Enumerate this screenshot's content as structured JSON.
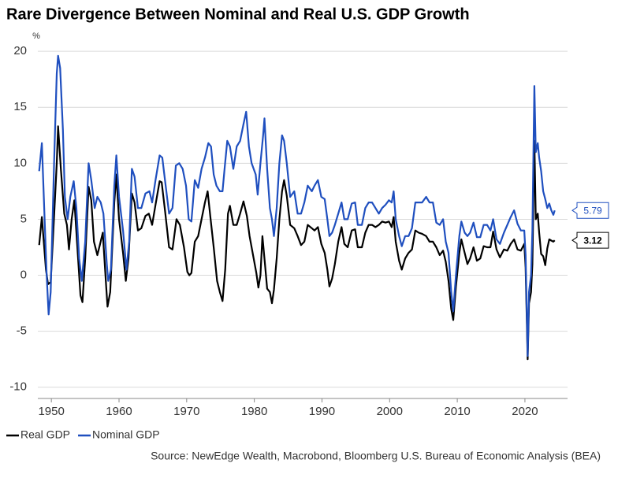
{
  "chart_data": {
    "type": "line",
    "title": "Rare Divergence Between Nominal and Real U.S. GDP Growth",
    "y_unit_label": "%",
    "source": "Source: NewEdge Wealth, Macrobond, Bloomberg U.S. Bureau of Economic Analysis (BEA)",
    "xlim": [
      1948,
      2026.3
    ],
    "xticks": [
      1950,
      1960,
      1970,
      1980,
      1990,
      2000,
      2010,
      2020
    ],
    "ylim": [
      -11,
      20.5
    ],
    "yticks": [
      -10,
      -5,
      0,
      5,
      10,
      15,
      20
    ],
    "grid": true,
    "series": [
      {
        "name": "Real GDP",
        "color": "#000000",
        "x": [
          1948.2,
          1948.6,
          1949.2,
          1949.5,
          1949.9,
          1950.3,
          1950.8,
          1951.0,
          1951.4,
          1951.9,
          1952.3,
          1952.6,
          1953.0,
          1953.4,
          1953.9,
          1954.3,
          1954.6,
          1955.0,
          1955.5,
          1955.9,
          1956.3,
          1956.8,
          1957.2,
          1957.6,
          1958.1,
          1958.3,
          1958.7,
          1959.3,
          1959.6,
          1960.0,
          1960.6,
          1961.0,
          1961.4,
          1961.9,
          1962.3,
          1962.8,
          1963.3,
          1963.9,
          1964.4,
          1964.9,
          1965.4,
          1966.0,
          1966.3,
          1966.8,
          1967.4,
          1967.9,
          1968.5,
          1969.0,
          1969.6,
          1970.1,
          1970.4,
          1970.7,
          1971.2,
          1971.7,
          1972.2,
          1972.7,
          1973.1,
          1973.5,
          1974.0,
          1974.5,
          1974.9,
          1975.3,
          1975.7,
          1976.1,
          1976.4,
          1976.9,
          1977.4,
          1977.9,
          1978.4,
          1978.9,
          1979.3,
          1979.9,
          1980.3,
          1980.6,
          1980.9,
          1981.2,
          1981.6,
          1981.9,
          1982.3,
          1982.6,
          1982.9,
          1983.3,
          1983.7,
          1984.1,
          1984.4,
          1984.8,
          1985.3,
          1985.9,
          1986.4,
          1986.9,
          1987.4,
          1987.9,
          1988.5,
          1988.9,
          1989.4,
          1989.9,
          1990.4,
          1990.8,
          1991.1,
          1991.5,
          1991.9,
          1992.4,
          1992.9,
          1993.3,
          1993.8,
          1994.4,
          1994.9,
          1995.3,
          1995.9,
          1996.4,
          1996.9,
          1997.4,
          1997.9,
          1998.4,
          1998.9,
          1999.4,
          1999.9,
          2000.3,
          2000.6,
          2000.9,
          2001.4,
          2001.8,
          2002.3,
          2002.8,
          2003.3,
          2003.8,
          2004.3,
          2004.8,
          2005.4,
          2005.9,
          2006.4,
          2006.9,
          2007.4,
          2007.9,
          2008.3,
          2008.7,
          2009.1,
          2009.4,
          2009.8,
          2010.3,
          2010.6,
          2011.1,
          2011.5,
          2011.9,
          2012.4,
          2012.9,
          2013.4,
          2013.9,
          2014.4,
          2014.9,
          2015.3,
          2015.8,
          2016.3,
          2016.9,
          2017.4,
          2017.9,
          2018.4,
          2018.9,
          2019.4,
          2019.9,
          2020.1,
          2020.4,
          2020.6,
          2020.9,
          2021.1,
          2021.4,
          2021.6,
          2021.9,
          2022.1,
          2022.4,
          2022.7,
          2023.0,
          2023.3,
          2023.6,
          2023.9,
          2024.2,
          2024.4
        ],
        "values": [
          2.7,
          5.2,
          0.5,
          -0.8,
          -0.6,
          4,
          10,
          13.3,
          9.5,
          5.5,
          4.5,
          2.3,
          5,
          6.7,
          2,
          -1.8,
          -2.4,
          1.5,
          7.9,
          6.7,
          3,
          1.8,
          2.8,
          3.8,
          -1,
          -2.8,
          -1.5,
          6.5,
          9,
          5,
          2,
          -0.5,
          1.5,
          7.3,
          6.5,
          4,
          4.2,
          5.3,
          5.5,
          4.5,
          6.3,
          8.4,
          8.3,
          5.8,
          2.5,
          2.3,
          5,
          4.5,
          2.5,
          0.3,
          0,
          0.2,
          3,
          3.5,
          5,
          6.5,
          7.5,
          5.2,
          2.5,
          -0.5,
          -1.5,
          -2.3,
          0.5,
          5.5,
          6.2,
          4.5,
          4.5,
          5.5,
          6.6,
          5.3,
          3.5,
          1.5,
          0.2,
          -1.1,
          0,
          3.5,
          0.8,
          -1.2,
          -1.5,
          -2.5,
          -1.3,
          1.5,
          5,
          7.5,
          8.5,
          7.1,
          4.5,
          4.2,
          3.5,
          2.7,
          3,
          4.5,
          4.2,
          4,
          4.3,
          2.8,
          2,
          0.5,
          -1,
          -0.3,
          1,
          3,
          4.3,
          2.8,
          2.5,
          4,
          4.1,
          2.5,
          2.5,
          3.8,
          4.5,
          4.5,
          4.3,
          4.5,
          4.8,
          4.7,
          4.8,
          4.3,
          5.2,
          3,
          1.3,
          0.5,
          1.5,
          2,
          2.3,
          4,
          3.8,
          3.7,
          3.5,
          3,
          3,
          2.5,
          1.8,
          2.2,
          1.2,
          -0.5,
          -3,
          -4,
          -1,
          2,
          3.2,
          2,
          1,
          1.5,
          2.5,
          1.3,
          1.5,
          2.6,
          2.5,
          2.5,
          3.9,
          2.3,
          1.6,
          2.3,
          2.2,
          2.8,
          3.2,
          2.3,
          2.2,
          2.8,
          0.7,
          -7.5,
          -2.5,
          -1.5,
          1,
          12,
          5,
          5.5,
          3.8,
          1.9,
          1.7,
          0.9,
          2.4,
          3.2,
          3.1,
          3.0,
          3.12
        ]
      },
      {
        "name": "Nominal GDP",
        "color": "#1f4fbf",
        "x": [
          1948.2,
          1948.6,
          1949.0,
          1949.3,
          1949.6,
          1949.9,
          1950.4,
          1950.8,
          1951.0,
          1951.3,
          1951.7,
          1952.0,
          1952.4,
          1952.8,
          1953.3,
          1953.7,
          1954.1,
          1954.5,
          1955.0,
          1955.5,
          1955.9,
          1956.4,
          1956.8,
          1957.3,
          1957.7,
          1958.2,
          1958.4,
          1958.8,
          1959.3,
          1959.6,
          1960.0,
          1960.6,
          1961.1,
          1961.5,
          1961.9,
          1962.3,
          1962.8,
          1963.3,
          1963.9,
          1964.5,
          1964.9,
          1965.4,
          1966.0,
          1966.4,
          1966.8,
          1967.4,
          1967.9,
          1968.4,
          1968.9,
          1969.4,
          1969.9,
          1970.3,
          1970.7,
          1971.2,
          1971.7,
          1972.2,
          1972.7,
          1973.2,
          1973.6,
          1974.0,
          1974.4,
          1974.9,
          1975.3,
          1975.6,
          1976.0,
          1976.4,
          1976.9,
          1977.4,
          1977.9,
          1978.4,
          1978.8,
          1979.2,
          1979.6,
          1980.2,
          1980.5,
          1980.9,
          1981.3,
          1981.5,
          1981.9,
          1982.3,
          1982.6,
          1982.9,
          1983.3,
          1983.7,
          1984.1,
          1984.4,
          1984.8,
          1985.3,
          1985.9,
          1986.4,
          1986.9,
          1987.4,
          1987.9,
          1988.5,
          1988.9,
          1989.4,
          1989.9,
          1990.4,
          1990.8,
          1991.1,
          1991.5,
          1991.9,
          1992.4,
          1992.9,
          1993.3,
          1993.8,
          1994.4,
          1994.9,
          1995.3,
          1995.9,
          1996.4,
          1996.9,
          1997.4,
          1997.9,
          1998.4,
          1998.9,
          1999.4,
          1999.9,
          2000.3,
          2000.6,
          2000.9,
          2001.4,
          2001.8,
          2002.3,
          2002.8,
          2003.3,
          2003.8,
          2004.3,
          2004.8,
          2005.4,
          2005.9,
          2006.4,
          2006.9,
          2007.4,
          2007.9,
          2008.3,
          2008.7,
          2009.1,
          2009.4,
          2009.8,
          2010.3,
          2010.6,
          2011.1,
          2011.5,
          2011.9,
          2012.4,
          2012.9,
          2013.4,
          2013.9,
          2014.4,
          2014.9,
          2015.3,
          2015.8,
          2016.3,
          2016.9,
          2017.4,
          2017.9,
          2018.4,
          2018.9,
          2019.4,
          2019.9,
          2020.1,
          2020.4,
          2020.6,
          2020.9,
          2021.1,
          2021.4,
          2021.6,
          2021.9,
          2022.1,
          2022.4,
          2022.7,
          2023.0,
          2023.3,
          2023.6,
          2023.9,
          2024.2,
          2024.4
        ],
        "values": [
          9.3,
          11.8,
          5,
          0,
          -3.5,
          -1.5,
          10,
          18,
          19.6,
          18.5,
          13,
          7,
          5,
          7,
          8.4,
          6,
          1.5,
          -0.5,
          3,
          10,
          8.5,
          6,
          7,
          6.5,
          5.5,
          1,
          -0.5,
          0.5,
          8,
          10.7,
          7,
          4,
          0.5,
          3,
          9.5,
          8.8,
          6,
          6,
          7.3,
          7.5,
          6.5,
          8.5,
          10.7,
          10.5,
          8.5,
          5.5,
          6,
          9.8,
          10,
          9.5,
          8,
          5,
          4.8,
          8.5,
          7.8,
          9.5,
          10.5,
          11.8,
          11.5,
          9,
          8,
          7.5,
          7.5,
          9.5,
          12,
          11.5,
          9.5,
          11.5,
          12,
          13.5,
          14.6,
          11.5,
          10,
          9,
          7.2,
          10,
          12.5,
          14,
          9.5,
          6,
          5,
          3.5,
          6,
          10,
          12.5,
          12,
          10,
          7,
          7.5,
          5.5,
          5.5,
          6.5,
          8,
          7.5,
          8,
          8.5,
          7,
          6.8,
          5,
          3.5,
          3.8,
          4.5,
          5.5,
          6.5,
          5,
          5,
          6.4,
          6.5,
          4.5,
          4.5,
          6,
          6.5,
          6.5,
          6,
          5.5,
          6,
          6.3,
          6.7,
          6.5,
          7.5,
          5,
          3.5,
          2.6,
          3.5,
          3.5,
          4.2,
          6.5,
          6.5,
          6.5,
          7,
          6.5,
          6.5,
          4.7,
          4.5,
          5,
          3,
          2,
          -1.5,
          -3.2,
          0,
          3.5,
          4.8,
          3.8,
          3.5,
          3.8,
          4.7,
          3.4,
          3.4,
          4.5,
          4.5,
          4,
          5,
          3.2,
          2.8,
          3.8,
          4.5,
          5.2,
          5.8,
          4.6,
          4,
          4,
          1.8,
          -7.2,
          -1.5,
          0,
          4,
          16.9,
          11,
          11.8,
          10.5,
          9.3,
          7.5,
          6.8,
          6,
          6.4,
          5.8,
          5.4,
          5.79
        ]
      }
    ]
  }
}
